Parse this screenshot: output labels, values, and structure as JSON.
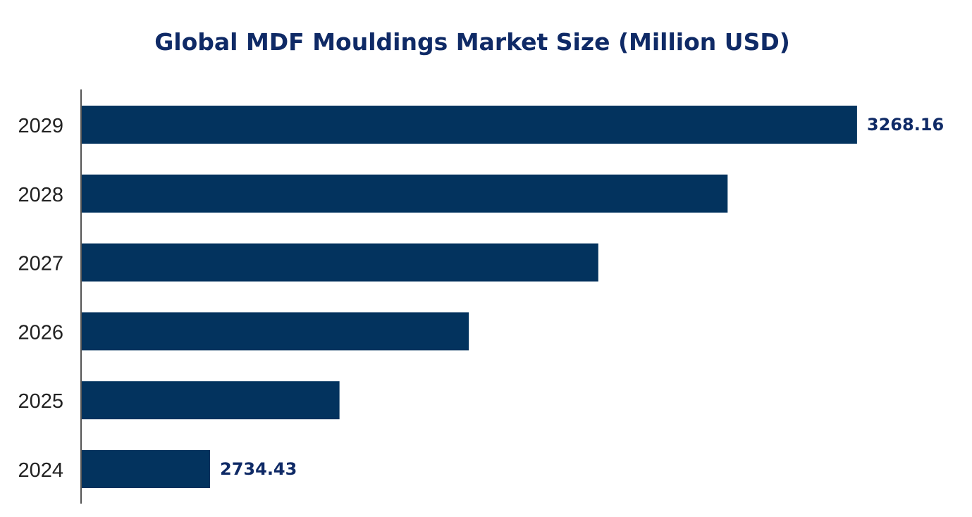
{
  "chart_data": {
    "type": "bar",
    "orientation": "horizontal",
    "title": "Global MDF Mouldings Market Size (Million USD)",
    "xlabel": "",
    "ylabel": "",
    "categories": [
      "2029",
      "2028",
      "2027",
      "2026",
      "2025",
      "2024"
    ],
    "values": [
      3268.16,
      3161.4,
      3054.7,
      2947.9,
      2841.2,
      2734.43
    ],
    "data_labels": {
      "2029": "3268.16",
      "2024": "2734.43"
    },
    "xlim": [
      2628,
      3363
    ],
    "grid": false,
    "legend": "none",
    "colors": {
      "bar": "#03335E",
      "data_label": "#0F2A66",
      "title": "#0F2A66",
      "tick_label": "#222222",
      "axis": "#555555"
    }
  }
}
